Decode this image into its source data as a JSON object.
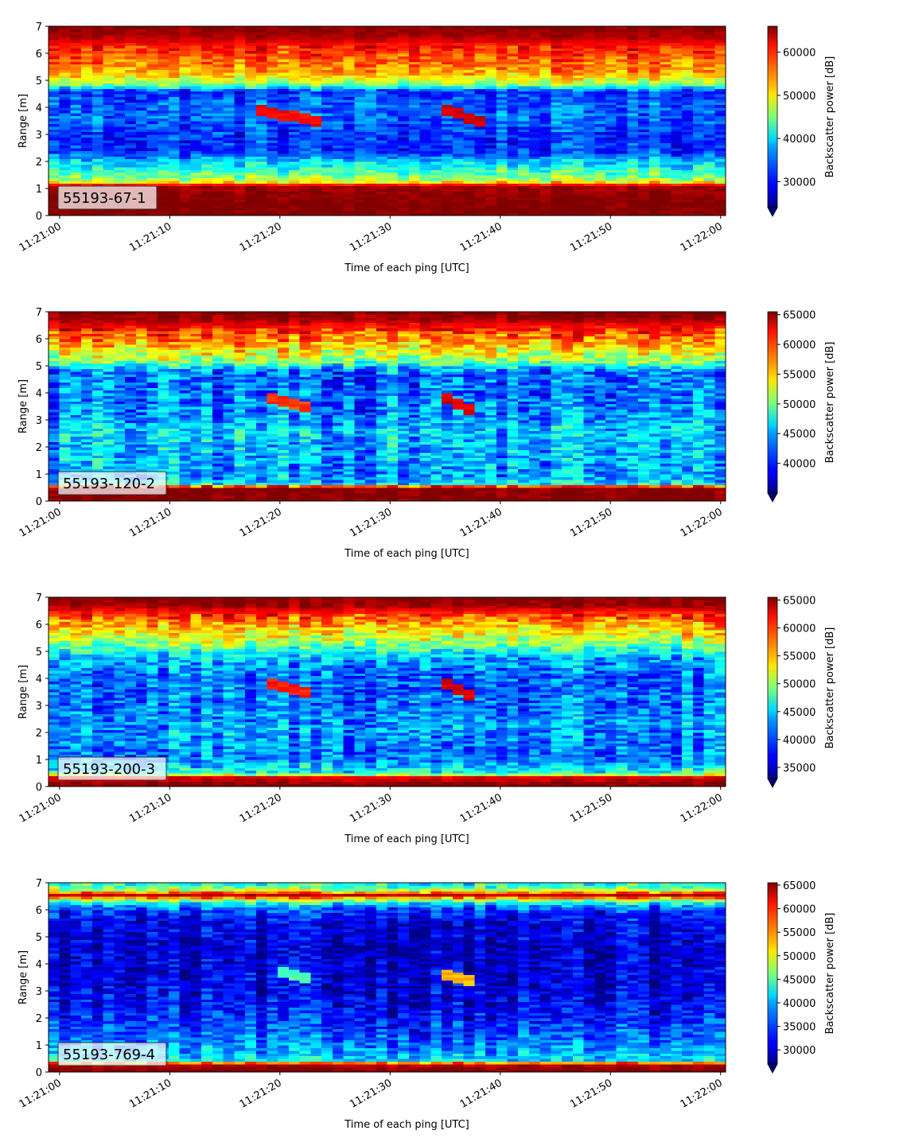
{
  "chart_data": [
    {
      "type": "heatmap",
      "label": "55193-67-1",
      "xlabel": "Time of each ping [UTC]",
      "ylabel": "Range [m]",
      "colorbar_label": "Backscatter power [dB]",
      "colormap": "jet",
      "xlim": [
        "11:21:00",
        "11:22:00"
      ],
      "xticks": [
        "11:21:00",
        "11:21:10",
        "11:21:20",
        "11:21:30",
        "11:21:40",
        "11:21:50",
        "11:22:00"
      ],
      "ylim": [
        0,
        7
      ],
      "yticks": [
        0,
        1,
        2,
        3,
        4,
        5,
        6,
        7
      ],
      "clim": [
        24000,
        66000
      ],
      "cticks": [
        30000,
        40000,
        50000,
        60000
      ],
      "colorbar_extend": "min",
      "profile": [
        {
          "range": 0.1,
          "value": 66000
        },
        {
          "range": 0.5,
          "value": 66000
        },
        {
          "range": 1.1,
          "value": 64500
        },
        {
          "range": 1.3,
          "value": 47000
        },
        {
          "range": 1.6,
          "value": 43000
        },
        {
          "range": 2.0,
          "value": 38000
        },
        {
          "range": 2.4,
          "value": 31000
        },
        {
          "range": 3.0,
          "value": 31500
        },
        {
          "range": 3.6,
          "value": 33500
        },
        {
          "range": 4.2,
          "value": 33000
        },
        {
          "range": 4.6,
          "value": 31000
        },
        {
          "range": 4.9,
          "value": 47000
        },
        {
          "range": 5.3,
          "value": 54000
        },
        {
          "range": 5.8,
          "value": 57000
        },
        {
          "range": 6.3,
          "value": 60000
        },
        {
          "range": 6.6,
          "value": 64000
        },
        {
          "range": 7.0,
          "value": 66000
        }
      ],
      "fish_tracks": [
        {
          "start": "11:21:18",
          "end": "11:21:24",
          "range_start": 3.9,
          "range_end": 3.5,
          "value": 62000
        },
        {
          "start": "11:21:35",
          "end": "11:21:39",
          "range_start": 3.9,
          "range_end": 3.4,
          "value": 64000
        }
      ]
    },
    {
      "type": "heatmap",
      "label": "55193-120-2",
      "xlabel": "Time of each ping [UTC]",
      "ylabel": "Range [m]",
      "colorbar_label": "Backscatter power [dB]",
      "colormap": "jet",
      "xlim": [
        "11:21:00",
        "11:22:00"
      ],
      "xticks": [
        "11:21:00",
        "11:21:10",
        "11:21:20",
        "11:21:30",
        "11:21:40",
        "11:21:50",
        "11:22:00"
      ],
      "ylim": [
        0,
        7
      ],
      "yticks": [
        0,
        1,
        2,
        3,
        4,
        5,
        6,
        7
      ],
      "clim": [
        35000,
        65500
      ],
      "cticks": [
        40000,
        45000,
        50000,
        55000,
        60000,
        65000
      ],
      "colorbar_extend": "min",
      "profile": [
        {
          "range": 0.1,
          "value": 65500
        },
        {
          "range": 0.5,
          "value": 65500
        },
        {
          "range": 0.65,
          "value": 46000
        },
        {
          "range": 1.0,
          "value": 43000
        },
        {
          "range": 1.5,
          "value": 44000
        },
        {
          "range": 2.0,
          "value": 44000
        },
        {
          "range": 2.6,
          "value": 45000
        },
        {
          "range": 3.2,
          "value": 43000
        },
        {
          "range": 4.0,
          "value": 42000
        },
        {
          "range": 4.8,
          "value": 42000
        },
        {
          "range": 5.2,
          "value": 51000
        },
        {
          "range": 5.8,
          "value": 56000
        },
        {
          "range": 6.3,
          "value": 60000
        },
        {
          "range": 6.7,
          "value": 64000
        },
        {
          "range": 7.0,
          "value": 65500
        }
      ],
      "fish_tracks": [
        {
          "start": "11:21:19",
          "end": "11:21:23",
          "range_start": 3.8,
          "range_end": 3.4,
          "value": 61000
        },
        {
          "start": "11:21:35",
          "end": "11:21:38",
          "range_start": 3.8,
          "range_end": 3.3,
          "value": 64000
        }
      ]
    },
    {
      "type": "heatmap",
      "label": "55193-200-3",
      "xlabel": "Time of each ping [UTC]",
      "ylabel": "Range [m]",
      "colorbar_label": "Backscatter power [dB]",
      "colormap": "jet",
      "xlim": [
        "11:21:00",
        "11:22:00"
      ],
      "xticks": [
        "11:21:00",
        "11:21:10",
        "11:21:20",
        "11:21:30",
        "11:21:40",
        "11:21:50",
        "11:22:00"
      ],
      "ylim": [
        0,
        7
      ],
      "yticks": [
        0,
        1,
        2,
        3,
        4,
        5,
        6,
        7
      ],
      "clim": [
        33000,
        65500
      ],
      "cticks": [
        35000,
        40000,
        45000,
        50000,
        55000,
        60000,
        65000
      ],
      "colorbar_extend": "min",
      "profile": [
        {
          "range": 0.1,
          "value": 65500
        },
        {
          "range": 0.35,
          "value": 62000
        },
        {
          "range": 0.5,
          "value": 46000
        },
        {
          "range": 1.0,
          "value": 41000
        },
        {
          "range": 1.6,
          "value": 41000
        },
        {
          "range": 2.2,
          "value": 42000
        },
        {
          "range": 3.0,
          "value": 41000
        },
        {
          "range": 4.0,
          "value": 40000
        },
        {
          "range": 4.8,
          "value": 43000
        },
        {
          "range": 5.3,
          "value": 50000
        },
        {
          "range": 5.9,
          "value": 55000
        },
        {
          "range": 6.4,
          "value": 60000
        },
        {
          "range": 6.7,
          "value": 64500
        },
        {
          "range": 7.0,
          "value": 65500
        }
      ],
      "fish_tracks": [
        {
          "start": "11:21:19",
          "end": "11:21:23",
          "range_start": 3.8,
          "range_end": 3.4,
          "value": 62000
        },
        {
          "start": "11:21:35",
          "end": "11:21:38",
          "range_start": 3.8,
          "range_end": 3.3,
          "value": 64000
        }
      ]
    },
    {
      "type": "heatmap",
      "label": "55193-769-4",
      "xlabel": "Time of each ping [UTC]",
      "ylabel": "Range [m]",
      "colorbar_label": "Backscatter power [dB]",
      "colormap": "jet",
      "xlim": [
        "11:21:00",
        "11:22:00"
      ],
      "xticks": [
        "11:21:00",
        "11:21:10",
        "11:21:20",
        "11:21:30",
        "11:21:40",
        "11:21:50",
        "11:22:00"
      ],
      "ylim": [
        0,
        7
      ],
      "yticks": [
        0,
        1,
        2,
        3,
        4,
        5,
        6,
        7
      ],
      "clim": [
        27000,
        65500
      ],
      "cticks": [
        30000,
        35000,
        40000,
        45000,
        50000,
        55000,
        60000,
        65000
      ],
      "colorbar_extend": "min",
      "profile": [
        {
          "range": 0.1,
          "value": 65500
        },
        {
          "range": 0.3,
          "value": 63000
        },
        {
          "range": 0.45,
          "value": 40000
        },
        {
          "range": 1.0,
          "value": 37000
        },
        {
          "range": 1.6,
          "value": 34000
        },
        {
          "range": 2.5,
          "value": 31500
        },
        {
          "range": 3.5,
          "value": 30000
        },
        {
          "range": 4.5,
          "value": 29500
        },
        {
          "range": 5.5,
          "value": 30500
        },
        {
          "range": 6.0,
          "value": 34000
        },
        {
          "range": 6.3,
          "value": 42000
        },
        {
          "range": 6.55,
          "value": 63000
        },
        {
          "range": 6.8,
          "value": 45000
        },
        {
          "range": 7.0,
          "value": 42000
        }
      ],
      "fish_tracks": [
        {
          "start": "11:21:20",
          "end": "11:21:23",
          "range_start": 3.7,
          "range_end": 3.4,
          "value": 45000
        },
        {
          "start": "11:21:35",
          "end": "11:21:38",
          "range_start": 3.6,
          "range_end": 3.3,
          "value": 55000
        }
      ]
    }
  ]
}
